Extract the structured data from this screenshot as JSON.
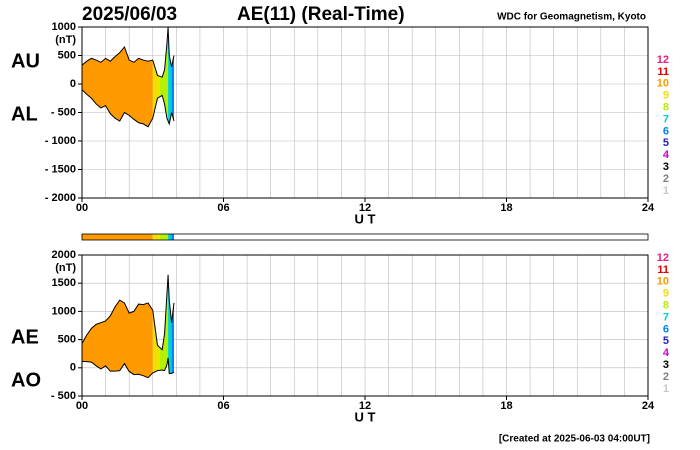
{
  "chart_data": [
    {
      "type": "area_band",
      "date": "2025/06/03",
      "title": "AE(11) (Real-Time)",
      "source": "WDC for Geomagnetism, Kyoto",
      "y_unit": "(nT)",
      "x_label": "U T",
      "grid": true,
      "x": [
        0,
        0.2,
        0.4,
        0.6,
        0.8,
        1.0,
        1.2,
        1.4,
        1.6,
        1.8,
        2.0,
        2.2,
        2.4,
        2.6,
        2.8,
        3.0,
        3.2,
        3.4,
        3.5,
        3.6,
        3.65,
        3.7,
        3.8,
        3.9
      ],
      "series": [
        {
          "name": "AU",
          "color": "#000000",
          "values": [
            330,
            400,
            450,
            420,
            380,
            450,
            400,
            480,
            550,
            650,
            420,
            380,
            450,
            420,
            400,
            420,
            150,
            120,
            250,
            700,
            1000,
            500,
            300,
            500
          ]
        },
        {
          "name": "AL",
          "color": "#000000",
          "values": [
            -100,
            -180,
            -250,
            -350,
            -420,
            -380,
            -520,
            -600,
            -650,
            -500,
            -550,
            -620,
            -680,
            -700,
            -750,
            -600,
            -250,
            -200,
            -350,
            -600,
            -650,
            -700,
            -500,
            -650
          ]
        }
      ],
      "xlim": [
        0,
        24
      ],
      "xticks": [
        {
          "value": 0,
          "label": "00"
        },
        {
          "value": 6,
          "label": "06"
        },
        12,
        18,
        24
      ],
      "ylim": [
        -2000,
        1000
      ],
      "yticks": [
        {
          "value": -2000,
          "label": "- 2000"
        },
        {
          "value": -1500,
          "label": "- 1500"
        },
        {
          "value": -1000,
          "label": "- 1000"
        },
        {
          "value": -500,
          "label": "- 500"
        },
        0,
        500,
        1000
      ],
      "segments": [
        {
          "x0": 0,
          "x1": 3.0,
          "stations": 10
        },
        {
          "x0": 3.0,
          "x1": 3.3,
          "stations": 9
        },
        {
          "x0": 3.3,
          "x1": 3.65,
          "stations": 8
        },
        {
          "x0": 3.65,
          "x1": 3.8,
          "stations": 7
        },
        {
          "x0": 3.8,
          "x1": 3.9,
          "stations": 6
        }
      ],
      "station_legend": [
        {
          "label": "12",
          "color": "#e8207a"
        },
        {
          "label": "11",
          "color": "#e00000"
        },
        {
          "label": "10",
          "color": "#ff9900"
        },
        {
          "label": "9",
          "color": "#f0e000"
        },
        {
          "label": "8",
          "color": "#b4f000"
        },
        {
          "label": "7",
          "color": "#00d0d0"
        },
        {
          "label": "6",
          "color": "#0080ff"
        },
        {
          "label": "5",
          "color": "#2020c0"
        },
        {
          "label": "4",
          "color": "#d000d0"
        },
        {
          "label": "3",
          "color": "#000000"
        },
        {
          "label": "2",
          "color": "#808080"
        },
        {
          "label": "1",
          "color": "#c8c8c8"
        }
      ]
    },
    {
      "type": "area_band",
      "y_unit": "(nT)",
      "x_label": "U T",
      "grid": true,
      "note": "[Created at 2025-06-03 04:00UT]",
      "x": [
        0,
        0.2,
        0.4,
        0.6,
        0.8,
        1.0,
        1.2,
        1.4,
        1.6,
        1.8,
        2.0,
        2.2,
        2.4,
        2.6,
        2.8,
        3.0,
        3.2,
        3.4,
        3.5,
        3.6,
        3.65,
        3.7,
        3.8,
        3.9
      ],
      "series": [
        {
          "name": "AE",
          "color": "#000000",
          "values": [
            430,
            580,
            700,
            770,
            800,
            830,
            920,
            1080,
            1200,
            1150,
            970,
            1000,
            1130,
            1120,
            1150,
            1020,
            400,
            320,
            600,
            1300,
            1650,
            1200,
            800,
            1150
          ]
        },
        {
          "name": "AO",
          "color": "#000000",
          "values": [
            115,
            110,
            100,
            35,
            -20,
            35,
            -60,
            -60,
            -50,
            75,
            -65,
            -120,
            -115,
            -140,
            -175,
            -90,
            -50,
            -40,
            -50,
            50,
            175,
            -100,
            -100,
            -75
          ]
        }
      ],
      "xlim": [
        0,
        24
      ],
      "xticks": [
        {
          "value": 0,
          "label": "00"
        },
        {
          "value": 6,
          "label": "06"
        },
        12,
        18,
        24
      ],
      "ylim": [
        -500,
        2000
      ],
      "yticks": [
        {
          "value": -500,
          "label": "- 500"
        },
        0,
        500,
        1000,
        1500,
        2000
      ]
    }
  ]
}
